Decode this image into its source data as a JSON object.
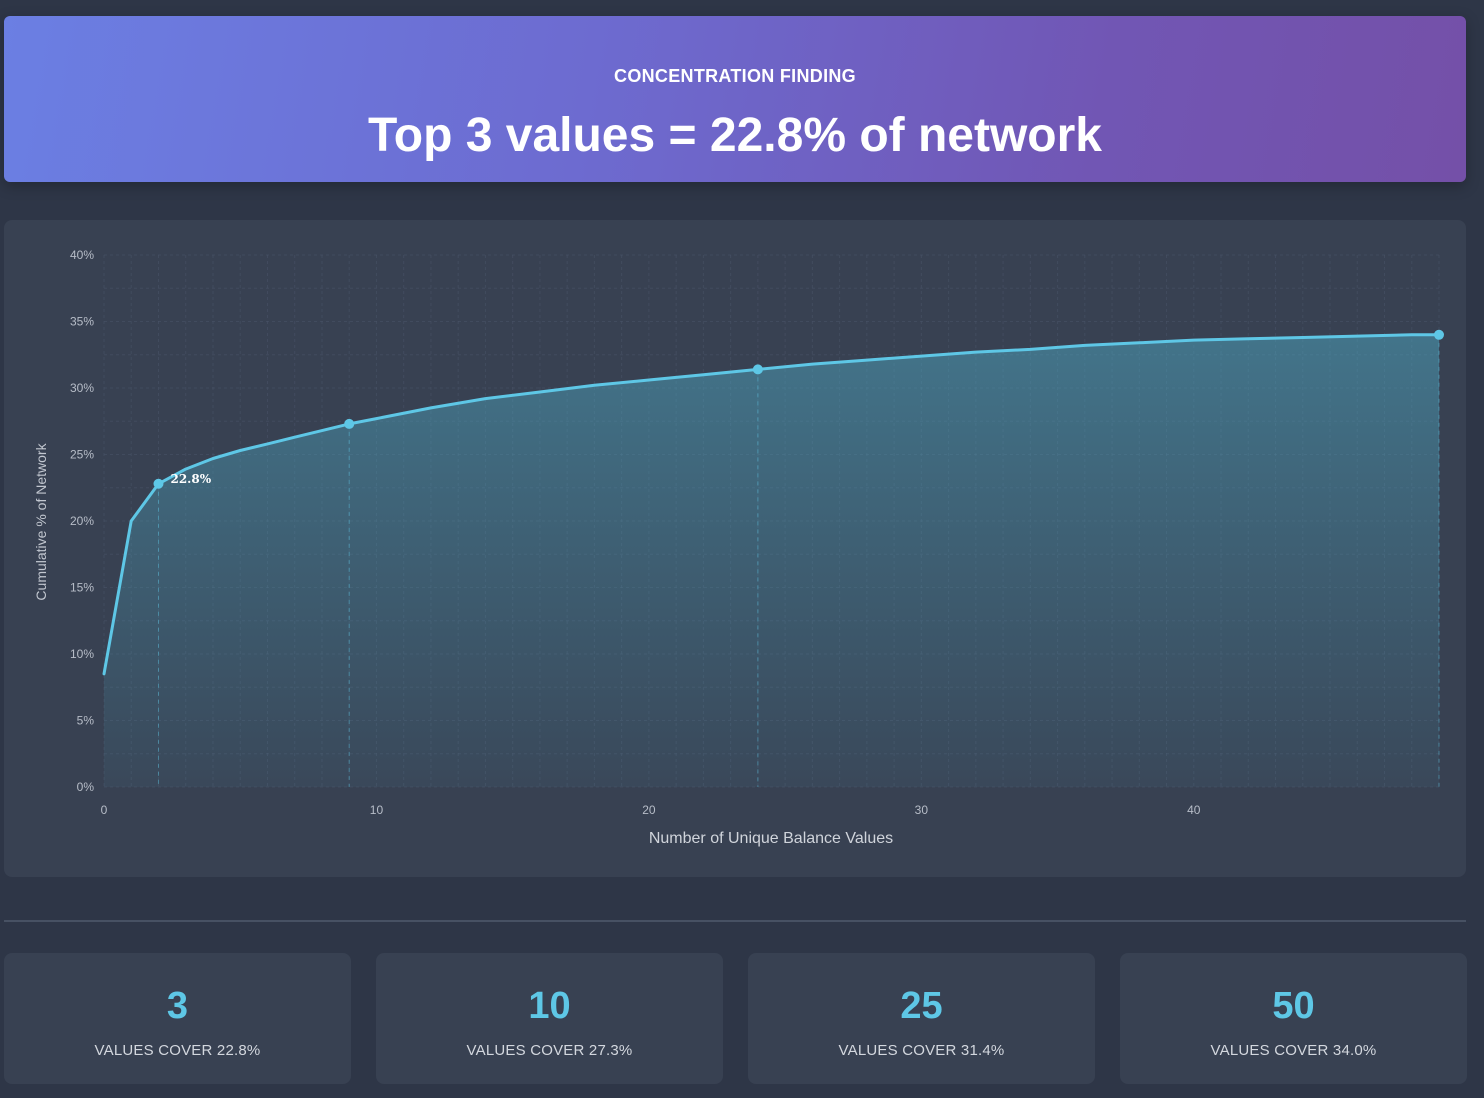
{
  "banner": {
    "label": "CONCENTRATION FINDING",
    "headline": "Top 3 values = 22.8% of network"
  },
  "chart_data": {
    "type": "area",
    "xlabel": "Number of Unique Balance Values",
    "ylabel": "Cumulative % of Network",
    "xlim": [
      0,
      49
    ],
    "ylim": [
      0,
      40
    ],
    "x_ticks": [
      0,
      10,
      20,
      30,
      40
    ],
    "y_ticks": [
      "0%",
      "5%",
      "10%",
      "15%",
      "20%",
      "25%",
      "30%",
      "35%",
      "40%"
    ],
    "grid": true,
    "series": [
      {
        "x": [
          0,
          1,
          2,
          3,
          4,
          5,
          6,
          7,
          8,
          9,
          10,
          12,
          14,
          16,
          18,
          20,
          22,
          24,
          26,
          28,
          30,
          32,
          34,
          36,
          38,
          40,
          42,
          44,
          46,
          48,
          49
        ],
        "y": [
          8.5,
          20.0,
          22.8,
          23.9,
          24.7,
          25.3,
          25.8,
          26.3,
          26.8,
          27.3,
          27.7,
          28.5,
          29.2,
          29.7,
          30.2,
          30.6,
          31.0,
          31.4,
          31.8,
          32.1,
          32.4,
          32.7,
          32.9,
          33.2,
          33.4,
          33.6,
          33.7,
          33.8,
          33.9,
          34.0,
          34.0
        ]
      }
    ],
    "highlight_points": [
      {
        "x": 2,
        "y": 22.8,
        "label": "22.8%"
      },
      {
        "x": 9,
        "y": 27.3,
        "label": ""
      },
      {
        "x": 24,
        "y": 31.4,
        "label": ""
      },
      {
        "x": 49,
        "y": 34.0,
        "label": ""
      }
    ],
    "colors": {
      "line": "#5ec7e6",
      "fill": "#4fb3cf",
      "grid": "#4a5468",
      "text": "#b7bdc8"
    }
  },
  "stats": [
    {
      "number": "3",
      "caption": "VALUES COVER 22.8%"
    },
    {
      "number": "10",
      "caption": "VALUES COVER 27.3%"
    },
    {
      "number": "25",
      "caption": "VALUES COVER 31.4%"
    },
    {
      "number": "50",
      "caption": "VALUES COVER 34.0%"
    }
  ]
}
